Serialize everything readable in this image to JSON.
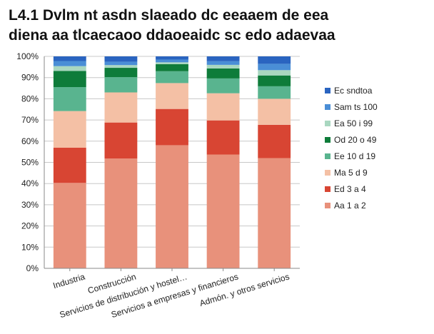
{
  "title_lines": [
    "L4.1 Dvlm nt asdn slaeado dc eeaaem de eea",
    "diena aa tlcaecaoo ddaoeaidc sc edo adaevaa"
  ],
  "chart_data": {
    "type": "bar",
    "stacked": true,
    "percent": true,
    "categories": [
      "Industria",
      "Construcción",
      "Servicios de distribución y hostel…",
      "Servicios a empresas y financieros",
      "Admón. y otros servicios"
    ],
    "series": [
      {
        "name": "Aa 1 a 2",
        "color": "#e8917b",
        "values": [
          40.3,
          51.8,
          58.1,
          53.7,
          52.0
        ]
      },
      {
        "name": "Ed 3 a 4",
        "color": "#d84533",
        "values": [
          16.6,
          17.0,
          17.1,
          16.1,
          15.7
        ]
      },
      {
        "name": "Ma 5 d 9",
        "color": "#f4c0a5",
        "values": [
          17.3,
          14.2,
          12.2,
          12.8,
          12.3
        ]
      },
      {
        "name": "Ee 10 d 19",
        "color": "#59b48f",
        "values": [
          11.3,
          7.2,
          5.6,
          7.0,
          5.9
        ]
      },
      {
        "name": "Od 20 o 49",
        "color": "#0e7c3a",
        "values": [
          7.6,
          4.4,
          3.3,
          4.7,
          5.1
        ]
      },
      {
        "name": "Ea 50 i 99",
        "color": "#a9d7c0",
        "values": [
          2.3,
          1.3,
          0.9,
          1.7,
          2.5
        ]
      },
      {
        "name": "Sam ts 100",
        "color": "#4a8ed6",
        "values": [
          2.4,
          1.6,
          1.3,
          1.7,
          3.0
        ]
      },
      {
        "name": "Ec sndtoa",
        "color": "#2a64c0",
        "values": [
          2.2,
          2.5,
          1.5,
          2.3,
          3.5
        ]
      }
    ],
    "ylim": [
      0,
      100
    ],
    "yticks": [
      "0%",
      "10%",
      "20%",
      "30%",
      "40%",
      "50%",
      "60%",
      "70%",
      "80%",
      "90%",
      "100%"
    ],
    "grid": true,
    "legend": "right"
  }
}
